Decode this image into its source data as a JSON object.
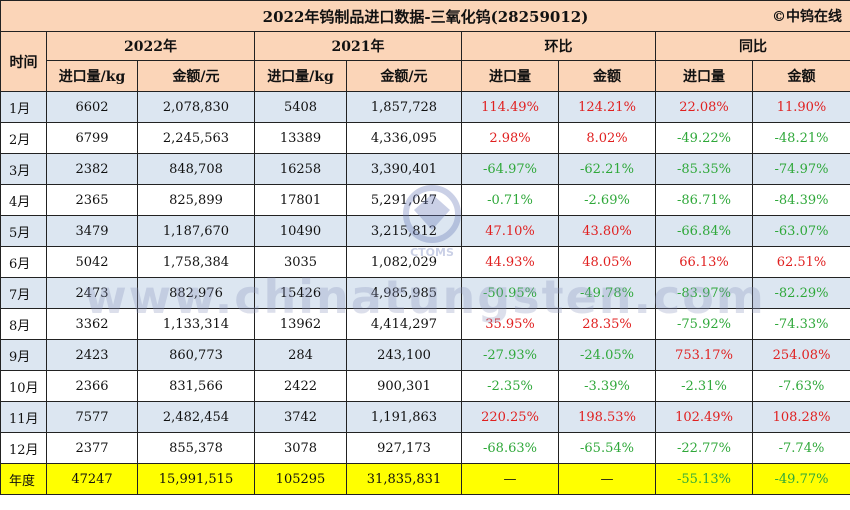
{
  "title": "2022年钨制品进口数据-三氧化钨(28259012)",
  "brand": "©中钨在线",
  "headers": {
    "time": "时间",
    "y2022": "2022年",
    "y2021": "2021年",
    "mom": "环比",
    "yoy": "同比",
    "import_qty": "进口量/kg",
    "amount": "金额/元",
    "import_short": "进口量",
    "amount_short": "金额"
  },
  "rows": [
    {
      "month": "1月",
      "q22": "6602",
      "a22": "2,078,830",
      "q21": "5408",
      "a21": "1,857,728",
      "mq": "114.49%",
      "ma": "124.21%",
      "yq": "22.08%",
      "ya": "11.90%"
    },
    {
      "month": "2月",
      "q22": "6799",
      "a22": "2,245,563",
      "q21": "13389",
      "a21": "4,336,095",
      "mq": "2.98%",
      "ma": "8.02%",
      "yq": "-49.22%",
      "ya": "-48.21%"
    },
    {
      "month": "3月",
      "q22": "2382",
      "a22": "848,708",
      "q21": "16258",
      "a21": "3,390,401",
      "mq": "-64.97%",
      "ma": "-62.21%",
      "yq": "-85.35%",
      "ya": "-74.97%"
    },
    {
      "month": "4月",
      "q22": "2365",
      "a22": "825,899",
      "q21": "17801",
      "a21": "5,291,047",
      "mq": "-0.71%",
      "ma": "-2.69%",
      "yq": "-86.71%",
      "ya": "-84.39%"
    },
    {
      "month": "5月",
      "q22": "3479",
      "a22": "1,187,670",
      "q21": "10490",
      "a21": "3,215,812",
      "mq": "47.10%",
      "ma": "43.80%",
      "yq": "-66.84%",
      "ya": "-63.07%"
    },
    {
      "month": "6月",
      "q22": "5042",
      "a22": "1,758,384",
      "q21": "3035",
      "a21": "1,082,029",
      "mq": "44.93%",
      "ma": "48.05%",
      "yq": "66.13%",
      "ya": "62.51%"
    },
    {
      "month": "7月",
      "q22": "2473",
      "a22": "882,976",
      "q21": "15426",
      "a21": "4,985,985",
      "mq": "-50.95%",
      "ma": "-49.78%",
      "yq": "-83.97%",
      "ya": "-82.29%"
    },
    {
      "month": "8月",
      "q22": "3362",
      "a22": "1,133,314",
      "q21": "13962",
      "a21": "4,414,297",
      "mq": "35.95%",
      "ma": "28.35%",
      "yq": "-75.92%",
      "ya": "-74.33%"
    },
    {
      "month": "9月",
      "q22": "2423",
      "a22": "860,773",
      "q21": "284",
      "a21": "243,100",
      "mq": "-27.93%",
      "ma": "-24.05%",
      "yq": "753.17%",
      "ya": "254.08%"
    },
    {
      "month": "10月",
      "q22": "2366",
      "a22": "831,566",
      "q21": "2422",
      "a21": "900,301",
      "mq": "-2.35%",
      "ma": "-3.39%",
      "yq": "-2.31%",
      "ya": "-7.63%"
    },
    {
      "month": "11月",
      "q22": "7577",
      "a22": "2,482,454",
      "q21": "3742",
      "a21": "1,191,863",
      "mq": "220.25%",
      "ma": "198.53%",
      "yq": "102.49%",
      "ya": "108.28%"
    },
    {
      "month": "12月",
      "q22": "2377",
      "a22": "855,378",
      "q21": "3078",
      "a21": "927,173",
      "mq": "-68.63%",
      "ma": "-65.54%",
      "yq": "-22.77%",
      "ya": "-7.74%"
    }
  ],
  "total": {
    "month": "年度",
    "q22": "47247",
    "a22": "15,991,515",
    "q21": "105295",
    "a21": "31,835,831",
    "mq": "—",
    "ma": "—",
    "yq": "-55.13%",
    "ya": "-49.77%"
  },
  "watermark": "www.chinatungsten.com",
  "logo_text": "CTOMS",
  "colors": {
    "header_bg": "#fbd5b8",
    "stripe_bg": "#dce6f1",
    "total_bg": "#ffff00",
    "positive": "#e02020",
    "negative": "#2fa83a"
  }
}
